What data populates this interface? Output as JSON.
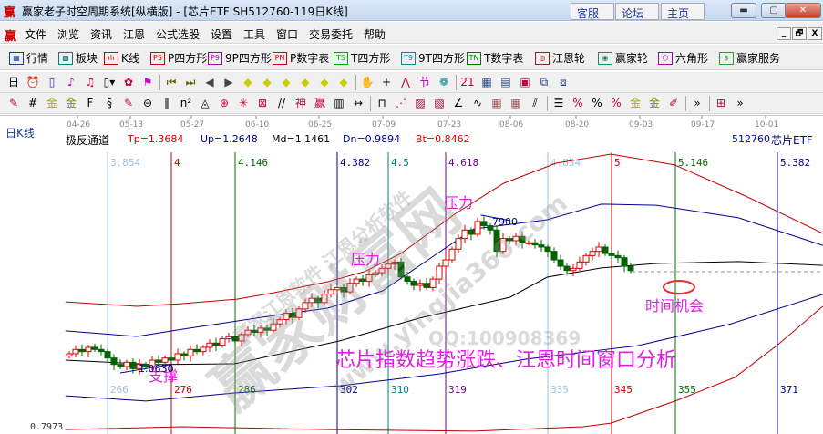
{
  "window": {
    "logo_text": "赢",
    "title": "赢家老子时空周期系统[纵横版] - [芯片ETF  SH512760-119日K线]",
    "links": [
      "客服",
      "论坛",
      "主页"
    ],
    "controls": [
      "minimize",
      "maximize",
      "close"
    ]
  },
  "menu": {
    "items": [
      "文件",
      "浏览",
      "资讯",
      "江恩",
      "公式选股",
      "设置",
      "工具",
      "窗口",
      "交易委托",
      "帮助"
    ],
    "mdi_controls": [
      "_",
      "🗗",
      "X"
    ]
  },
  "toolbar1": [
    {
      "label": "行情",
      "icon": "quote-table-icon",
      "color": "#1a3aa0",
      "glyph": "▦"
    },
    {
      "label": "板块",
      "icon": "sector-grid-icon",
      "color": "#0a7a7a",
      "glyph": "▩"
    },
    {
      "label": "K线",
      "icon": "candlestick-icon",
      "color": "#c00",
      "glyph": "ılı"
    },
    {
      "label": "P四方形",
      "icon": "ps-icon",
      "color": "#c00",
      "glyph": "PS"
    },
    {
      "label": "9P四方形",
      "icon": "p9-icon",
      "color": "#a0a",
      "glyph": "P9"
    },
    {
      "label": "P数字表",
      "icon": "pn-icon",
      "color": "#c00",
      "glyph": "PN"
    },
    {
      "label": "T四方形",
      "icon": "ts-icon",
      "color": "#0a0",
      "glyph": "TS"
    },
    {
      "label": "9T四方形",
      "icon": "t9-icon",
      "color": "#08a",
      "glyph": "T9"
    },
    {
      "label": "T数字表",
      "icon": "tn-icon",
      "color": "#070",
      "glyph": "TN"
    },
    {
      "label": "江恩轮",
      "icon": "gann-wheel-icon",
      "color": "#822",
      "glyph": "◎"
    },
    {
      "label": "赢家轮",
      "icon": "winner-wheel-icon",
      "color": "#286",
      "glyph": "◉"
    },
    {
      "label": "六角形",
      "icon": "hexagon-icon",
      "color": "#a0a",
      "glyph": "⬡"
    },
    {
      "label": "赢家服务",
      "icon": "dollar-icon",
      "color": "#2a2",
      "glyph": "$"
    }
  ],
  "toolbar2": [
    {
      "icon": "period-day-icon",
      "glyph": "日▾",
      "color": "#000"
    },
    {
      "icon": "alarm-icon",
      "glyph": "⏰",
      "color": "#33a"
    },
    {
      "icon": "battery-icon",
      "glyph": "▯",
      "color": "#33a"
    },
    {
      "icon": "chart3-icon",
      "glyph": "♪",
      "color": "#a0a"
    },
    {
      "icon": "chart9-icon",
      "glyph": "♫",
      "color": "#c03"
    },
    {
      "icon": "bar-type-icon",
      "glyph": "▯▾",
      "color": "#000"
    },
    {
      "icon": "formula-icon",
      "glyph": "✿",
      "color": "#c03"
    },
    {
      "icon": "flag-icon",
      "glyph": "⚑",
      "color": "#c0c"
    },
    {
      "icon": "first-icon",
      "glyph": "⏮",
      "color": "#660"
    },
    {
      "icon": "last-icon",
      "glyph": "⏭",
      "color": "#660"
    },
    {
      "icon": "left-icon",
      "glyph": "◀",
      "color": "#444"
    },
    {
      "icon": "right-icon",
      "glyph": "▶",
      "color": "#444"
    },
    {
      "icon": "scroll-left-icon",
      "glyph": "◆",
      "color": "#cc0"
    },
    {
      "icon": "scroll-right-icon",
      "glyph": "◆",
      "color": "#cc0"
    },
    {
      "icon": "expand-icon",
      "glyph": "◆",
      "color": "#cc0"
    },
    {
      "icon": "shrink-icon",
      "glyph": "◆",
      "color": "#cc0"
    },
    {
      "icon": "zoom-in-icon",
      "glyph": "◆",
      "color": "#cc0"
    },
    {
      "icon": "zoom-out-icon",
      "glyph": "◆",
      "color": "#cc0"
    },
    {
      "icon": "hand-icon",
      "glyph": "✋",
      "color": "#000"
    },
    {
      "icon": "crosshair-icon",
      "glyph": "+",
      "color": "#000"
    },
    {
      "icon": "line-draw-icon",
      "glyph": "⋀",
      "color": "#c03"
    },
    {
      "icon": "festival-icon",
      "glyph": "节",
      "color": "#a0a"
    },
    {
      "icon": "cycle-icon",
      "glyph": "❁",
      "color": "#088"
    },
    {
      "icon": "calendar-icon",
      "glyph": "21",
      "color": "#c03"
    },
    {
      "icon": "calculator-icon",
      "glyph": "▦",
      "color": "#248"
    },
    {
      "icon": "notes-icon",
      "glyph": "▤",
      "color": "#248"
    },
    {
      "icon": "save-icon",
      "glyph": "▣",
      "color": "#c03"
    },
    {
      "icon": "network-icon",
      "glyph": "⧉",
      "color": "#248"
    },
    {
      "icon": "connect-icon",
      "glyph": "⧈",
      "color": "#248"
    }
  ],
  "toolbar3": [
    {
      "icon": "pen-icon",
      "glyph": "✎",
      "color": "#c03"
    },
    {
      "icon": "grid-lines-icon",
      "glyph": "#",
      "color": "#000"
    },
    {
      "icon": "gold-grid-icon",
      "glyph": "金",
      "color": "#aa0"
    },
    {
      "icon": "gold-grid2-icon",
      "glyph": "金",
      "color": "#880"
    },
    {
      "icon": "fibonacci-icon",
      "glyph": "F",
      "color": "#000"
    },
    {
      "icon": "spiral-icon",
      "glyph": "§",
      "color": "#000"
    },
    {
      "icon": "pen2-icon",
      "glyph": "✎",
      "color": "#c03"
    },
    {
      "icon": "circle-grid-icon",
      "glyph": "⊖",
      "color": "#000"
    },
    {
      "icon": "parallel-icon",
      "glyph": "‖",
      "color": "#000"
    },
    {
      "icon": "n2-icon",
      "glyph": "n²",
      "color": "#000"
    },
    {
      "icon": "triangle-icon",
      "glyph": "◬",
      "color": "#000"
    },
    {
      "icon": "target-icon",
      "glyph": "⊕",
      "color": "#c03"
    },
    {
      "icon": "star-icon",
      "glyph": "✳",
      "color": "#c03"
    },
    {
      "icon": "box-icon",
      "glyph": "⊠",
      "color": "#c03"
    },
    {
      "icon": "slash-icon",
      "glyph": "//",
      "color": "#000"
    },
    {
      "icon": "god-icon",
      "glyph": "神",
      "color": "#c03"
    },
    {
      "icon": "win-icon",
      "glyph": "赢",
      "color": "#c03"
    },
    {
      "icon": "ruler-icon",
      "glyph": "▥",
      "color": "#000"
    },
    {
      "icon": "span-icon",
      "glyph": "↔",
      "color": "#000"
    },
    {
      "icon": "time-box-icon",
      "glyph": "⊓",
      "color": "#000"
    },
    {
      "icon": "fan-icon",
      "glyph": "⋰",
      "color": "#c03"
    },
    {
      "icon": "gann-box-icon",
      "glyph": "▨",
      "color": "#a03"
    },
    {
      "icon": "gann-box2-icon",
      "glyph": "▧",
      "color": "#a03"
    },
    {
      "icon": "angle-icon",
      "glyph": "∠",
      "color": "#000"
    },
    {
      "icon": "wave-icon",
      "glyph": "∿",
      "color": "#000"
    },
    {
      "icon": "square-grid-icon",
      "glyph": "▦",
      "color": "#a55"
    },
    {
      "icon": "square-grid2-icon",
      "glyph": "▦",
      "color": "#a55"
    },
    {
      "icon": "channel-icon",
      "glyph": "⫽",
      "color": "#000"
    },
    {
      "icon": "list-icon",
      "glyph": "☰",
      "color": "#000"
    },
    {
      "icon": "percent-box-icon",
      "glyph": "%",
      "color": "#c03"
    },
    {
      "icon": "percent-icon",
      "glyph": "%",
      "color": "#000"
    },
    {
      "icon": "percent-lines-icon",
      "glyph": "%",
      "color": "#c03"
    },
    {
      "icon": "gold-circle-icon",
      "glyph": "金",
      "color": "#aa0"
    },
    {
      "icon": "gold-lines-icon",
      "glyph": "金",
      "color": "#880"
    },
    {
      "icon": "marker-icon",
      "glyph": "✐",
      "color": "#c03"
    },
    {
      "icon": "more-icon",
      "glyph": "»",
      "color": "#000"
    },
    {
      "icon": "layout-icon",
      "glyph": "⊞",
      "color": "#c03"
    },
    {
      "icon": "more2-icon",
      "glyph": "»",
      "color": "#000"
    }
  ],
  "chart_header": {
    "period_label": "日K线",
    "indicator_name": "极反通道",
    "tp": "Tp=1.3684",
    "up": "Up=1.2648",
    "md": "Md=1.1461",
    "dn": "Dn=0.9894",
    "bt": "Bt=0.8462",
    "symbol": "512760",
    "stock_name": "芯片ETF",
    "bottom_price_label": "0.7973"
  },
  "watermark": {
    "brand": "赢家财富网",
    "sub1": "赢家江恩软件 江恩分析软件",
    "sub2": "www.yingjia360.com",
    "qq": "QQ:100908369"
  },
  "chart_data": {
    "type": "candlestick",
    "title": "芯片指数趋势涨跌、江恩时间窗口分析",
    "x_axis": "bar number",
    "date_ticks": [
      "04-26",
      "05-13",
      "05-27",
      "06-10",
      "06-25",
      "07-09",
      "07-23",
      "08-06",
      "08-20",
      "09-03",
      "09-17",
      "10-01"
    ],
    "first_bar": 260,
    "closes": [
      1.14,
      1.16,
      1.15,
      1.17,
      1.16,
      1.15,
      1.12,
      1.09,
      1.08,
      1.1,
      1.07,
      1.09,
      1.08,
      1.11,
      1.1,
      1.12,
      1.11,
      1.14,
      1.13,
      1.16,
      1.15,
      1.17,
      1.19,
      1.18,
      1.21,
      1.22,
      1.2,
      1.23,
      1.25,
      1.24,
      1.26,
      1.25,
      1.28,
      1.3,
      1.33,
      1.31,
      1.35,
      1.38,
      1.4,
      1.38,
      1.42,
      1.44,
      1.45,
      1.43,
      1.47,
      1.49,
      1.48,
      1.51,
      1.52,
      1.54,
      1.56,
      1.57,
      1.5,
      1.48,
      1.46,
      1.47,
      1.45,
      1.49,
      1.55,
      1.58,
      1.63,
      1.68,
      1.72,
      1.7,
      1.76,
      1.74,
      1.72,
      1.62,
      1.68,
      1.67,
      1.69,
      1.66,
      1.66,
      1.65,
      1.64,
      1.62,
      1.58,
      1.55,
      1.53,
      1.54,
      1.57,
      1.6,
      1.62,
      1.64,
      1.61,
      1.6,
      1.59,
      1.55,
      1.53
    ],
    "y_range": [
      0.78,
      2.12
    ],
    "bands": [
      {
        "name": "Tp",
        "color": "#c00000",
        "points": [
          [
            259.4,
            1.383
          ],
          [
            270.6,
            1.362
          ],
          [
            277.7,
            1.375
          ],
          [
            286.3,
            1.396
          ],
          [
            292,
            1.426
          ],
          [
            300.6,
            1.478
          ],
          [
            306.3,
            1.525
          ],
          [
            312,
            1.61
          ],
          [
            320.6,
            1.798
          ],
          [
            328.1,
            1.939
          ],
          [
            336.3,
            2.033
          ],
          [
            344.9,
            2.076
          ],
          [
            354.9,
            2.025
          ],
          [
            366.3,
            1.875
          ],
          [
            378.1,
            1.704
          ]
        ]
      },
      {
        "name": "Up",
        "color": "#000090",
        "points": [
          [
            259.4,
            1.247
          ],
          [
            270.6,
            1.221
          ],
          [
            277.7,
            1.255
          ],
          [
            292,
            1.319
          ],
          [
            300.6,
            1.354
          ],
          [
            309.1,
            1.435
          ],
          [
            317.7,
            1.61
          ],
          [
            323.4,
            1.725
          ],
          [
            334.9,
            1.768
          ],
          [
            343.4,
            1.841
          ],
          [
            352,
            1.836
          ],
          [
            364.9,
            1.777
          ],
          [
            378.1,
            1.648
          ]
        ]
      },
      {
        "name": "Md",
        "color": "#000000",
        "points": [
          [
            259.4,
            1.11
          ],
          [
            273.4,
            1.089
          ],
          [
            285.9,
            1.093
          ],
          [
            302.4,
            1.2
          ],
          [
            314.9,
            1.307
          ],
          [
            329.1,
            1.405
          ],
          [
            334.9,
            1.499
          ],
          [
            343.4,
            1.542
          ],
          [
            352,
            1.563
          ],
          [
            364.9,
            1.572
          ],
          [
            378.1,
            1.554
          ]
        ]
      },
      {
        "name": "Dn",
        "color": "#000090",
        "points": [
          [
            259.4,
            0.943
          ],
          [
            272,
            0.918
          ],
          [
            285.9,
            0.956
          ],
          [
            302.4,
            0.99
          ],
          [
            318.1,
            1.046
          ],
          [
            331.4,
            1.114
          ],
          [
            349.1,
            1.178
          ],
          [
            363.4,
            1.277
          ],
          [
            378.1,
            1.418
          ]
        ]
      },
      {
        "name": "Bt",
        "color": "#c00000",
        "points": [
          [
            259.4,
            0.785
          ],
          [
            277.7,
            0.798
          ],
          [
            300.6,
            0.785
          ],
          [
            323.4,
            0.777
          ],
          [
            340.6,
            0.798
          ],
          [
            345,
            0.815
          ],
          [
            355.3,
            0.922
          ],
          [
            364.3,
            1.029
          ],
          [
            370.9,
            1.178
          ],
          [
            378.1,
            1.362
          ]
        ]
      }
    ],
    "time_windows": [
      {
        "top": "3.854",
        "bar": "266",
        "color": "#9cc3e0"
      },
      {
        "top": "4",
        "bar": "276",
        "color": "#d00000"
      },
      {
        "top": "4.146",
        "bar": "286",
        "color": "#007000"
      },
      {
        "top": "4.382",
        "bar": "302",
        "color": "#000090"
      },
      {
        "top": "4.5",
        "bar": "310",
        "color": "#008080"
      },
      {
        "top": "4.618",
        "bar": "319",
        "color": "#700090"
      },
      {
        "top": "4.854",
        "bar": "335",
        "color": "#9cc3e0"
      },
      {
        "top": "5",
        "bar": "345",
        "color": "#d00000"
      },
      {
        "top": "5.146",
        "bar": "355",
        "color": "#007000"
      },
      {
        "top": "5.382",
        "bar": "371",
        "color": "#000090"
      }
    ],
    "annotations": {
      "resistance1": "压力",
      "resistance2": "压力",
      "support": "支撑",
      "low_value": "1.0630",
      "high_value": "7900",
      "time_opportunity": "时间机会"
    },
    "colors": {
      "up": "#e00000",
      "down": "#006400",
      "annotation": "#e020e0"
    }
  }
}
